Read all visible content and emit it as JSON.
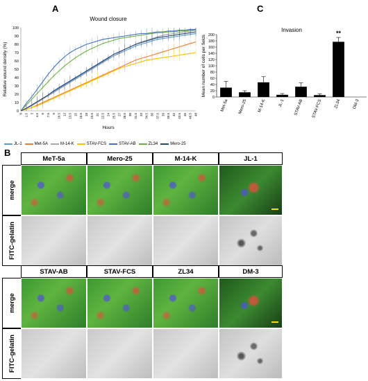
{
  "panels": {
    "a": "A",
    "b": "B",
    "c": "C"
  },
  "chart_data": [
    {
      "type": "line",
      "title": "Wound closure",
      "xlabel": "Hours",
      "ylabel": "Relative wound density (%)",
      "ylim": [
        0,
        100
      ],
      "yticks": [
        "0",
        "10",
        "20",
        "30",
        "40",
        "50",
        "60",
        "70",
        "80",
        "90",
        "100"
      ],
      "x": [
        "0",
        "1.5",
        "3",
        "4.5",
        "6",
        "7.5",
        "9",
        "10.5",
        "12",
        "13.5",
        "15",
        "16.5",
        "18",
        "19.5",
        "21",
        "22.5",
        "24",
        "25.5",
        "27",
        "28.5",
        "30",
        "31.5",
        "33",
        "34.5",
        "36",
        "37.5",
        "39",
        "40.5",
        "42",
        "43.5",
        "45",
        "46.5",
        "48"
      ],
      "legend_position": "bottom",
      "series": [
        {
          "name": "JL-1",
          "color": "#5b9bd5",
          "values": [
            0,
            3,
            7,
            11,
            15,
            19,
            23,
            27,
            31,
            35,
            39,
            43,
            47,
            51,
            55,
            59,
            63,
            66,
            69,
            72,
            75,
            78,
            80,
            82,
            84,
            86,
            87,
            88,
            89,
            90,
            91,
            92,
            93
          ]
        },
        {
          "name": "Met-5A",
          "color": "#ed7d31",
          "values": [
            0,
            2,
            4,
            7,
            10,
            13,
            16,
            19,
            22,
            25,
            28,
            31,
            34,
            37,
            40,
            43,
            46,
            49,
            52,
            55,
            58,
            61,
            63,
            65,
            67,
            69,
            71,
            73,
            75,
            77,
            79,
            81,
            83
          ]
        },
        {
          "name": "M-14-K",
          "color": "#a5a5a5",
          "values": [
            0,
            3,
            6,
            10,
            14,
            18,
            22,
            26,
            30,
            34,
            38,
            42,
            46,
            50,
            54,
            58,
            62,
            66,
            70,
            74,
            77,
            80,
            83,
            85,
            87,
            89,
            91,
            92,
            93,
            94,
            95,
            96,
            97
          ]
        },
        {
          "name": "STAV-FCS",
          "color": "#ffc000",
          "values": [
            0,
            2,
            4,
            6,
            9,
            12,
            15,
            18,
            21,
            24,
            27,
            30,
            33,
            36,
            39,
            42,
            45,
            48,
            51,
            53,
            55,
            57,
            59,
            61,
            62,
            63,
            64,
            65,
            66,
            67,
            68,
            69,
            70
          ]
        },
        {
          "name": "STAV-AB",
          "color": "#4472c4",
          "values": [
            0,
            9,
            17,
            26,
            35,
            44,
            52,
            59,
            65,
            70,
            74,
            77,
            80,
            82,
            84,
            86,
            87,
            88,
            89,
            90,
            91,
            92,
            93,
            93,
            94,
            95,
            95,
            96,
            96,
            97,
            97,
            98,
            98
          ]
        },
        {
          "name": "ZL34",
          "color": "#70ad47",
          "values": [
            0,
            7,
            14,
            21,
            28,
            35,
            42,
            48,
            54,
            59,
            64,
            68,
            72,
            75,
            78,
            81,
            83,
            85,
            87,
            88,
            89,
            90,
            91,
            92,
            93,
            94,
            94,
            95,
            95,
            96,
            96,
            97,
            97
          ]
        },
        {
          "name": "Mero-25",
          "color": "#264478",
          "values": [
            0,
            3,
            7,
            11,
            15,
            19,
            24,
            28,
            32,
            36,
            40,
            44,
            48,
            52,
            56,
            60,
            64,
            68,
            71,
            74,
            77,
            80,
            82,
            84,
            86,
            88,
            89,
            90,
            91,
            92,
            93,
            94,
            95
          ]
        }
      ]
    },
    {
      "type": "bar",
      "title": "Invasion",
      "xlabel": "",
      "ylabel": "Mean number of cells per fields",
      "ylim": [
        0,
        200
      ],
      "yticks": [
        "0",
        "20",
        "40",
        "60",
        "80",
        "100",
        "120",
        "140",
        "160",
        "180",
        "200"
      ],
      "categories": [
        "Met-5a",
        "Mero-25",
        "M-14-K",
        "JL-1",
        "STAV-AB",
        "STAV-FCS",
        "ZL34",
        "DM-3"
      ],
      "values": [
        30,
        15,
        47,
        7,
        33,
        6,
        177,
        0
      ],
      "errors": [
        20,
        5,
        18,
        4,
        12,
        4,
        14,
        0
      ],
      "annotation": "**",
      "annotation_category": "ZL34",
      "color": "#000000"
    }
  ],
  "micrograph": {
    "top_headers": [
      "MeT-5a",
      "Mero-25",
      "M-14-K",
      "JL-1"
    ],
    "bottom_headers": [
      "STAV-AB",
      "STAV-FCS",
      "ZL34",
      "DM-3"
    ],
    "row_labels": [
      "merge",
      "FITC-gelatin"
    ]
  }
}
